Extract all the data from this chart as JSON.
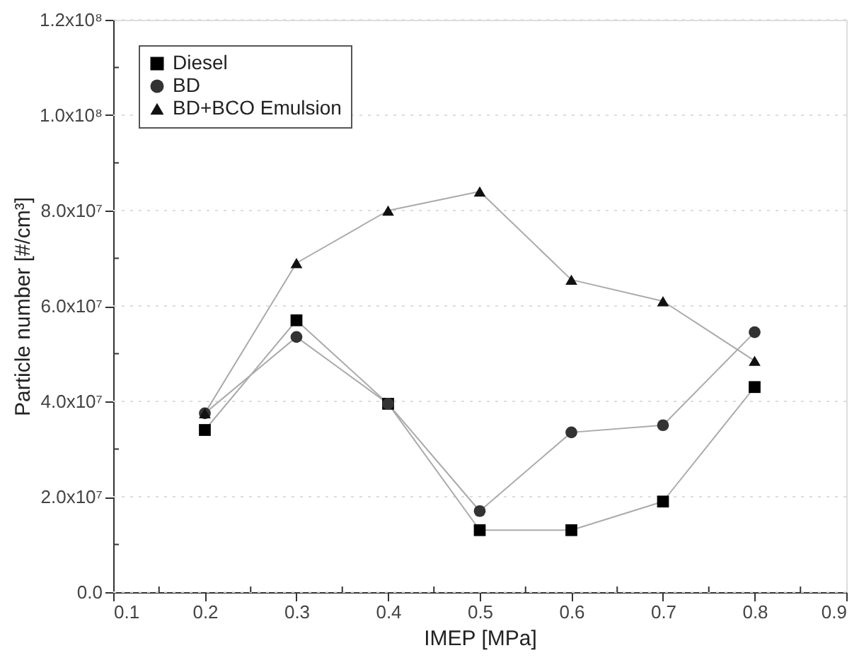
{
  "chart_data": {
    "type": "line",
    "xlabel": "IMEP [MPa]",
    "ylabel": "Particle number [#/cm³]",
    "x": [
      0.2,
      0.3,
      0.4,
      0.5,
      0.6,
      0.7,
      0.8
    ],
    "series": [
      {
        "name": "Diesel",
        "color": "#000000",
        "marker": "square",
        "values": [
          34000000.0,
          57000000.0,
          39500000.0,
          13000000.0,
          13000000.0,
          19000000.0,
          43000000.0
        ]
      },
      {
        "name": "BD",
        "color": "#333333",
        "marker": "circle",
        "values": [
          37500000.0,
          53500000.0,
          39500000.0,
          17000000.0,
          33500000.0,
          35000000.0,
          54500000.0
        ]
      },
      {
        "name": "BD+BCO Emulsion",
        "color": "#111111",
        "marker": "triangle",
        "values": [
          37500000.0,
          69000000.0,
          80000000.0,
          84000000.0,
          65500000.0,
          61000000.0,
          48500000.0
        ]
      }
    ],
    "xlim": [
      0.1,
      0.9
    ],
    "xticks": [
      0.1,
      {
        "value": 0.15,
        "label": null
      },
      0.2,
      {
        "value": 0.25,
        "label": null
      },
      0.3,
      {
        "value": 0.35,
        "label": null
      },
      0.4,
      {
        "value": 0.45,
        "label": null
      },
      0.5,
      {
        "value": 0.55,
        "label": null
      },
      0.6,
      {
        "value": 0.65,
        "label": null
      },
      0.7,
      {
        "value": 0.75,
        "label": null
      },
      0.8,
      {
        "value": 0.85,
        "label": null
      },
      0.9
    ],
    "ylim": [
      0,
      120000000.0
    ],
    "yticks": [
      {
        "value": 0,
        "label": "0.0"
      },
      {
        "value": 10000000.0,
        "label": null
      },
      {
        "value": 20000000.0,
        "label": "2.0x10⁷"
      },
      {
        "value": 30000000.0,
        "label": null
      },
      {
        "value": 40000000.0,
        "label": "4.0x10⁷"
      },
      {
        "value": 50000000.0,
        "label": null
      },
      {
        "value": 60000000.0,
        "label": "6.0x10⁷"
      },
      {
        "value": 70000000.0,
        "label": null
      },
      {
        "value": 80000000.0,
        "label": "8.0x10⁷"
      },
      {
        "value": 90000000.0,
        "label": null
      },
      {
        "value": 100000000.0,
        "label": "1.0x10⁸"
      },
      {
        "value": 110000000.0,
        "label": null
      },
      {
        "value": 120000000.0,
        "label": "1.2x10⁸"
      }
    ],
    "grid": "y",
    "legend": "top left",
    "line_style": "solid"
  }
}
